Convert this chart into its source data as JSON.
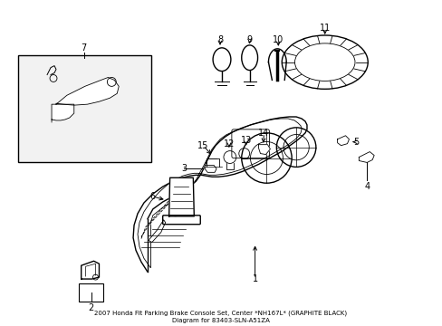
{
  "background_color": "#ffffff",
  "line_color": "#000000",
  "fig_width": 4.89,
  "fig_height": 3.6,
  "dpi": 100,
  "title": "2007 Honda Fit Parking Brake Console Set, Center *NH167L* (GRAPHITE BLACK)\nDiagram for 83403-SLN-A51ZA"
}
